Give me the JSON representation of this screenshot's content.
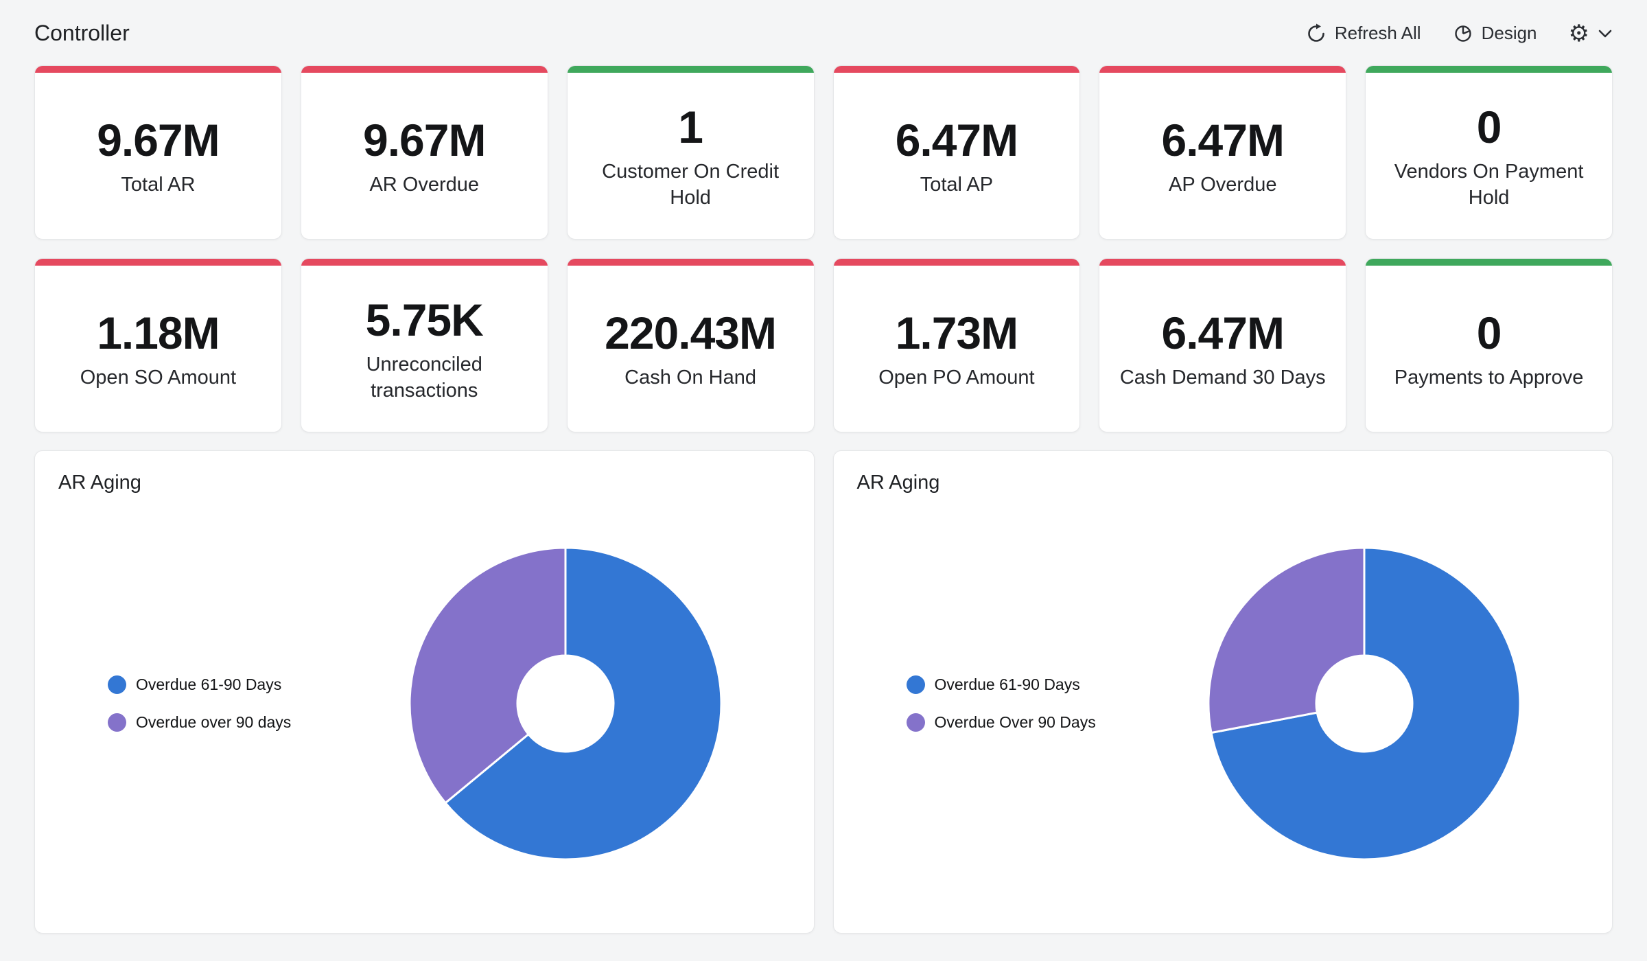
{
  "header": {
    "title": "Controller",
    "refresh_label": "Refresh All",
    "design_label": "Design",
    "icons": [
      "refresh-icon",
      "design-icon",
      "gear-icon",
      "chevron-down-icon"
    ]
  },
  "colors": {
    "status_red": "#e5495f",
    "status_green": "#3fa85c",
    "series_blue": "#3377d4",
    "series_purple": "#8472ca",
    "card_background": "#ffffff",
    "page_background": "#f4f5f6"
  },
  "kpis": [
    {
      "value": "9.67M",
      "label": "Total AR",
      "accent": "#e5495f"
    },
    {
      "value": "9.67M",
      "label": "AR Overdue",
      "accent": "#e5495f"
    },
    {
      "value": "1",
      "label": "Customer On Credit Hold",
      "accent": "#3fa85c"
    },
    {
      "value": "6.47M",
      "label": "Total AP",
      "accent": "#e5495f"
    },
    {
      "value": "6.47M",
      "label": "AP Overdue",
      "accent": "#e5495f"
    },
    {
      "value": "0",
      "label": "Vendors On Payment Hold",
      "accent": "#3fa85c"
    },
    {
      "value": "1.18M",
      "label": "Open SO Amount",
      "accent": "#e5495f"
    },
    {
      "value": "5.75K",
      "label": "Unreconciled transactions",
      "accent": "#e5495f"
    },
    {
      "value": "220.43M",
      "label": "Cash On Hand",
      "accent": "#e5495f"
    },
    {
      "value": "1.73M",
      "label": "Open PO Amount",
      "accent": "#e5495f"
    },
    {
      "value": "6.47M",
      "label": "Cash Demand 30 Days",
      "accent": "#e5495f"
    },
    {
      "value": "0",
      "label": "Payments to Approve",
      "accent": "#3fa85c"
    }
  ],
  "chart_data": [
    {
      "type": "pie",
      "subtype": "donut",
      "title": "AR Aging",
      "legend_position": "left",
      "slices": [
        {
          "label": "Overdue 61-90 Days",
          "value": 64,
          "color": "#3377d4"
        },
        {
          "label": "Overdue over 90 days",
          "value": 36,
          "color": "#8472ca"
        }
      ]
    },
    {
      "type": "pie",
      "subtype": "donut",
      "title": "AR Aging",
      "legend_position": "left",
      "slices": [
        {
          "label": "Overdue 61-90 Days",
          "value": 72,
          "color": "#3377d4"
        },
        {
          "label": "Overdue Over 90 Days",
          "value": 28,
          "color": "#8472ca"
        }
      ]
    }
  ]
}
